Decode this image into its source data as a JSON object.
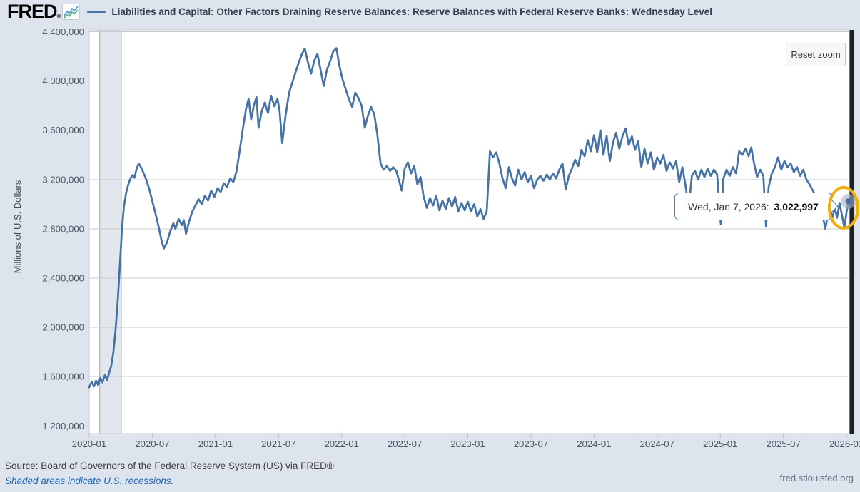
{
  "header": {
    "logo_text": "FRED",
    "logo_reg_mark": "®",
    "series_title": "Liabilities and Capital: Other Factors Draining Reserve Balances: Reserve Balances with Federal Reserve Banks: Wednesday Level"
  },
  "controls": {
    "reset_zoom_label": "Reset zoom"
  },
  "tooltip": {
    "date_label": "Wed, Jan 7, 2026:",
    "value_label": "3,022,997"
  },
  "footer": {
    "source_line": "Source: Board of Governors of the Federal Reserve System (US) via FRED®",
    "recession_note": "Shaded areas indicate U.S. recessions.",
    "site_watermark": "fred.stlouisfed.org"
  },
  "colors": {
    "page_bg": "#dde4ee",
    "plot_bg": "#ffffff",
    "line": "#4572a7",
    "grid": "#cbcbcb",
    "plot_border": "#c9ced6",
    "recession_band": "#e2e7ee",
    "recession_band_edge": "#a2a9b3",
    "tooltip_border": "#3e86ca",
    "highlight_ring": "#f0ad0b",
    "marker_halo": "#a9b4c4",
    "marker_dot": "#4b6f9e",
    "right_bar": "#1d2026",
    "axis_text": "#4d5560"
  },
  "chart_data": {
    "type": "line",
    "title": "Liabilities and Capital: Other Factors Draining Reserve Balances: Reserve Balances with Federal Reserve Banks: Wednesday Level",
    "xlabel": "",
    "ylabel": "Millions of U.S. Dollars",
    "x_unit": "months_since_2020-01",
    "xlim": [
      0,
      72.27
    ],
    "ylim": [
      1200000,
      4400000
    ],
    "grid": "horizontal-only",
    "legend_position": "top-header",
    "y_ticks": [
      {
        "value": 1200000,
        "label": "1,200,000"
      },
      {
        "value": 1600000,
        "label": "1,600,000"
      },
      {
        "value": 2000000,
        "label": "2,000,000"
      },
      {
        "value": 2400000,
        "label": "2,400,000"
      },
      {
        "value": 2800000,
        "label": "2,800,000"
      },
      {
        "value": 3200000,
        "label": "3,200,000"
      },
      {
        "value": 3600000,
        "label": "3,600,000"
      },
      {
        "value": 4000000,
        "label": "4,000,000"
      },
      {
        "value": 4400000,
        "label": "4,400,000"
      }
    ],
    "x_ticks": [
      {
        "m": 0,
        "label": "2020-01"
      },
      {
        "m": 6,
        "label": "2020-07"
      },
      {
        "m": 12,
        "label": "2021-01"
      },
      {
        "m": 18,
        "label": "2021-07"
      },
      {
        "m": 24,
        "label": "2022-01"
      },
      {
        "m": 30,
        "label": "2022-07"
      },
      {
        "m": 36,
        "label": "2023-01"
      },
      {
        "m": 42,
        "label": "2023-07"
      },
      {
        "m": 48,
        "label": "2024-01"
      },
      {
        "m": 54,
        "label": "2024-07"
      },
      {
        "m": 60,
        "label": "2025-01"
      },
      {
        "m": 66,
        "label": "2025-07"
      },
      {
        "m": 72,
        "label": "2026-01"
      }
    ],
    "recession_bands": [
      {
        "start_m": 1.0,
        "end_m": 3.05
      }
    ],
    "last_point": {
      "date": "Wed, Jan 7, 2026",
      "value": 3022997,
      "m": 72.2,
      "marker": "dot-with-halo-and-yellow-cursor-ring"
    },
    "series": [
      {
        "name": "Liabilities and Capital: Other Factors Draining Reserve Balances: Reserve Balances with Federal Reserve Banks: Wednesday Level",
        "color": "#4572a7",
        "points": [
          [
            0,
            1513000
          ],
          [
            0.25,
            1560000
          ],
          [
            0.45,
            1520000
          ],
          [
            0.65,
            1567000
          ],
          [
            0.85,
            1530000
          ],
          [
            1.05,
            1589000
          ],
          [
            1.25,
            1553000
          ],
          [
            1.5,
            1614000
          ],
          [
            1.7,
            1573000
          ],
          [
            1.9,
            1631000
          ],
          [
            2.1,
            1690000
          ],
          [
            2.3,
            1800000
          ],
          [
            2.5,
            1970000
          ],
          [
            2.7,
            2200000
          ],
          [
            2.9,
            2480000
          ],
          [
            3.1,
            2780000
          ],
          [
            3.3,
            2980000
          ],
          [
            3.5,
            3090000
          ],
          [
            3.7,
            3155000
          ],
          [
            3.9,
            3205000
          ],
          [
            4.1,
            3235000
          ],
          [
            4.3,
            3215000
          ],
          [
            4.5,
            3285000
          ],
          [
            4.7,
            3330000
          ],
          [
            4.9,
            3305000
          ],
          [
            5.1,
            3265000
          ],
          [
            5.4,
            3205000
          ],
          [
            5.7,
            3125000
          ],
          [
            6,
            3025000
          ],
          [
            6.3,
            2925000
          ],
          [
            6.6,
            2815000
          ],
          [
            6.9,
            2695000
          ],
          [
            7.1,
            2640000
          ],
          [
            7.4,
            2690000
          ],
          [
            7.7,
            2780000
          ],
          [
            8,
            2845000
          ],
          [
            8.2,
            2800000
          ],
          [
            8.5,
            2880000
          ],
          [
            8.8,
            2830000
          ],
          [
            9,
            2870000
          ],
          [
            9.2,
            2760000
          ],
          [
            9.5,
            2860000
          ],
          [
            9.8,
            2940000
          ],
          [
            10.1,
            2990000
          ],
          [
            10.4,
            3040000
          ],
          [
            10.7,
            3000000
          ],
          [
            11,
            3070000
          ],
          [
            11.3,
            3030000
          ],
          [
            11.6,
            3110000
          ],
          [
            11.9,
            3060000
          ],
          [
            12.2,
            3130000
          ],
          [
            12.5,
            3100000
          ],
          [
            12.8,
            3170000
          ],
          [
            13.1,
            3140000
          ],
          [
            13.4,
            3210000
          ],
          [
            13.7,
            3180000
          ],
          [
            14,
            3265000
          ],
          [
            14.3,
            3430000
          ],
          [
            14.6,
            3610000
          ],
          [
            14.9,
            3770000
          ],
          [
            15.15,
            3855000
          ],
          [
            15.4,
            3690000
          ],
          [
            15.65,
            3800000
          ],
          [
            15.9,
            3870000
          ],
          [
            16.1,
            3620000
          ],
          [
            16.4,
            3755000
          ],
          [
            16.7,
            3825000
          ],
          [
            17,
            3740000
          ],
          [
            17.3,
            3880000
          ],
          [
            17.6,
            3795000
          ],
          [
            17.9,
            3855000
          ],
          [
            18.1,
            3760000
          ],
          [
            18.35,
            3495000
          ],
          [
            18.65,
            3705000
          ],
          [
            19,
            3905000
          ],
          [
            19.3,
            3985000
          ],
          [
            19.6,
            4065000
          ],
          [
            19.9,
            4145000
          ],
          [
            20.2,
            4215000
          ],
          [
            20.5,
            4262000
          ],
          [
            20.8,
            4150000
          ],
          [
            21.1,
            4060000
          ],
          [
            21.4,
            4165000
          ],
          [
            21.7,
            4220000
          ],
          [
            22,
            4090000
          ],
          [
            22.3,
            3960000
          ],
          [
            22.6,
            4090000
          ],
          [
            22.9,
            4160000
          ],
          [
            23.2,
            4240000
          ],
          [
            23.5,
            4266000
          ],
          [
            23.8,
            4120000
          ],
          [
            24.1,
            4010000
          ],
          [
            24.4,
            3930000
          ],
          [
            24.7,
            3850000
          ],
          [
            25,
            3790000
          ],
          [
            25.3,
            3905000
          ],
          [
            25.6,
            3860000
          ],
          [
            25.9,
            3800000
          ],
          [
            26.2,
            3620000
          ],
          [
            26.5,
            3720000
          ],
          [
            26.8,
            3790000
          ],
          [
            27.1,
            3730000
          ],
          [
            27.4,
            3560000
          ],
          [
            27.7,
            3330000
          ],
          [
            28,
            3280000
          ],
          [
            28.3,
            3310000
          ],
          [
            28.6,
            3270000
          ],
          [
            28.9,
            3300000
          ],
          [
            29.2,
            3270000
          ],
          [
            29.5,
            3180000
          ],
          [
            29.7,
            3110000
          ],
          [
            30,
            3290000
          ],
          [
            30.3,
            3340000
          ],
          [
            30.6,
            3250000
          ],
          [
            30.9,
            3310000
          ],
          [
            31.2,
            3160000
          ],
          [
            31.5,
            3220000
          ],
          [
            31.8,
            3060000
          ],
          [
            32.1,
            2970000
          ],
          [
            32.4,
            3050000
          ],
          [
            32.7,
            2990000
          ],
          [
            33,
            3070000
          ],
          [
            33.3,
            2950000
          ],
          [
            33.6,
            3030000
          ],
          [
            33.9,
            2960000
          ],
          [
            34.2,
            3050000
          ],
          [
            34.5,
            2980000
          ],
          [
            34.8,
            3060000
          ],
          [
            35.1,
            2940000
          ],
          [
            35.4,
            3010000
          ],
          [
            35.7,
            2950000
          ],
          [
            36,
            3020000
          ],
          [
            36.3,
            2940000
          ],
          [
            36.6,
            3000000
          ],
          [
            36.9,
            2900000
          ],
          [
            37.2,
            2960000
          ],
          [
            37.5,
            2880000
          ],
          [
            37.8,
            2940000
          ],
          [
            38.1,
            3430000
          ],
          [
            38.4,
            3380000
          ],
          [
            38.7,
            3420000
          ],
          [
            39,
            3330000
          ],
          [
            39.3,
            3210000
          ],
          [
            39.6,
            3130000
          ],
          [
            39.9,
            3300000
          ],
          [
            40.2,
            3210000
          ],
          [
            40.5,
            3150000
          ],
          [
            40.8,
            3280000
          ],
          [
            41.1,
            3200000
          ],
          [
            41.4,
            3260000
          ],
          [
            41.7,
            3180000
          ],
          [
            42,
            3230000
          ],
          [
            42.3,
            3130000
          ],
          [
            42.6,
            3200000
          ],
          [
            42.9,
            3230000
          ],
          [
            43.2,
            3190000
          ],
          [
            43.5,
            3240000
          ],
          [
            43.8,
            3200000
          ],
          [
            44.1,
            3250000
          ],
          [
            44.4,
            3210000
          ],
          [
            44.7,
            3280000
          ],
          [
            45,
            3330000
          ],
          [
            45.3,
            3120000
          ],
          [
            45.6,
            3230000
          ],
          [
            45.9,
            3290000
          ],
          [
            46.2,
            3360000
          ],
          [
            46.5,
            3310000
          ],
          [
            46.8,
            3440000
          ],
          [
            47.1,
            3390000
          ],
          [
            47.4,
            3520000
          ],
          [
            47.7,
            3430000
          ],
          [
            48,
            3560000
          ],
          [
            48.3,
            3420000
          ],
          [
            48.6,
            3600000
          ],
          [
            48.9,
            3400000
          ],
          [
            49.2,
            3555000
          ],
          [
            49.5,
            3350000
          ],
          [
            49.8,
            3500000
          ],
          [
            50.1,
            3580000
          ],
          [
            50.4,
            3450000
          ],
          [
            50.7,
            3550000
          ],
          [
            51,
            3615000
          ],
          [
            51.3,
            3480000
          ],
          [
            51.6,
            3550000
          ],
          [
            51.9,
            3440000
          ],
          [
            52.2,
            3510000
          ],
          [
            52.5,
            3300000
          ],
          [
            52.8,
            3450000
          ],
          [
            53.1,
            3330000
          ],
          [
            53.4,
            3420000
          ],
          [
            53.7,
            3280000
          ],
          [
            54,
            3380000
          ],
          [
            54.3,
            3330000
          ],
          [
            54.6,
            3400000
          ],
          [
            54.9,
            3270000
          ],
          [
            55.2,
            3340000
          ],
          [
            55.5,
            3290000
          ],
          [
            55.8,
            3350000
          ],
          [
            56.1,
            3180000
          ],
          [
            56.4,
            3300000
          ],
          [
            56.7,
            3150000
          ],
          [
            57,
            2970000
          ],
          [
            57.3,
            3230000
          ],
          [
            57.6,
            3270000
          ],
          [
            57.9,
            3200000
          ],
          [
            58.2,
            3280000
          ],
          [
            58.5,
            3220000
          ],
          [
            58.8,
            3290000
          ],
          [
            59.1,
            3230000
          ],
          [
            59.4,
            3280000
          ],
          [
            59.7,
            3240000
          ],
          [
            60.05,
            2840000
          ],
          [
            60.3,
            3210000
          ],
          [
            60.6,
            3280000
          ],
          [
            60.9,
            3230000
          ],
          [
            61.2,
            3300000
          ],
          [
            61.5,
            3250000
          ],
          [
            61.8,
            3430000
          ],
          [
            62.1,
            3400000
          ],
          [
            62.4,
            3450000
          ],
          [
            62.7,
            3390000
          ],
          [
            62.95,
            3460000
          ],
          [
            63.2,
            3340000
          ],
          [
            63.5,
            3220000
          ],
          [
            63.8,
            3280000
          ],
          [
            64.1,
            3230000
          ],
          [
            64.35,
            2820000
          ],
          [
            64.6,
            3140000
          ],
          [
            64.9,
            3250000
          ],
          [
            65.2,
            3300000
          ],
          [
            65.5,
            3380000
          ],
          [
            65.8,
            3280000
          ],
          [
            66.1,
            3350000
          ],
          [
            66.4,
            3300000
          ],
          [
            66.7,
            3330000
          ],
          [
            67,
            3260000
          ],
          [
            67.3,
            3300000
          ],
          [
            67.6,
            3230000
          ],
          [
            67.9,
            3280000
          ],
          [
            68.2,
            3200000
          ],
          [
            68.5,
            3160000
          ],
          [
            68.8,
            3110000
          ],
          [
            69.1,
            3060000
          ],
          [
            69.4,
            3000000
          ],
          [
            69.7,
            2920000
          ],
          [
            70,
            2800000
          ],
          [
            70.3,
            2950000
          ],
          [
            70.6,
            2870000
          ],
          [
            70.9,
            2970000
          ],
          [
            71.1,
            2890000
          ],
          [
            71.35,
            3010000
          ],
          [
            71.55,
            2920000
          ],
          [
            71.8,
            2810000
          ],
          [
            72,
            2930000
          ],
          [
            72.2,
            3022997
          ]
        ]
      }
    ]
  }
}
